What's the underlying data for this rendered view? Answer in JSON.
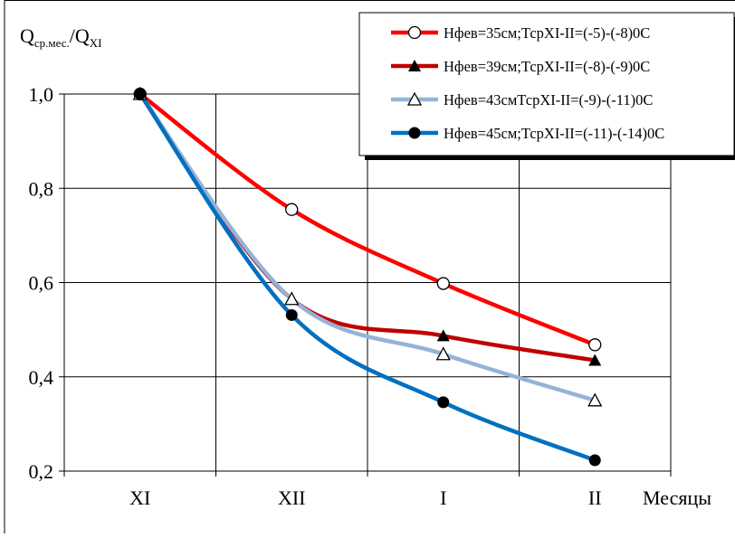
{
  "chart_data": {
    "type": "line",
    "ylabel": {
      "main": "Q",
      "sub1": "ср.мес.",
      "sep": "/Q",
      "sub2": "XI"
    },
    "xlabel": "Месяцы",
    "categories": [
      "XI",
      "XII",
      "I",
      "II"
    ],
    "yticks": [
      "0,2",
      "0,4",
      "0,6",
      "0,8",
      "1,0"
    ],
    "ylim": [
      0.2,
      1.0
    ],
    "grid": true,
    "legend_position": "top-right",
    "series": [
      {
        "name": "Нфев=35см;ТсрXI-II=(-5)-(-8)0С",
        "values": [
          1.0,
          0.755,
          0.598,
          0.468
        ],
        "color": "#ff0000",
        "marker": "circle-open"
      },
      {
        "name": "Нфев=39см;ТсрXI-II=(-8)-(-9)0С",
        "values": [
          1.0,
          0.565,
          0.487,
          0.435
        ],
        "color": "#c00000",
        "marker": "triangle-filled"
      },
      {
        "name": "Нфев=43смТсрXI-II=(-9)-(-11)0С",
        "values": [
          1.0,
          0.565,
          0.448,
          0.35
        ],
        "color": "#95b3d7",
        "marker": "triangle-open"
      },
      {
        "name": "Нфев=45см;ТсрXI-II=(-11)-(-14)0С",
        "values": [
          1.0,
          0.531,
          0.346,
          0.223
        ],
        "color": "#0070c0",
        "marker": "circle-filled"
      }
    ]
  }
}
